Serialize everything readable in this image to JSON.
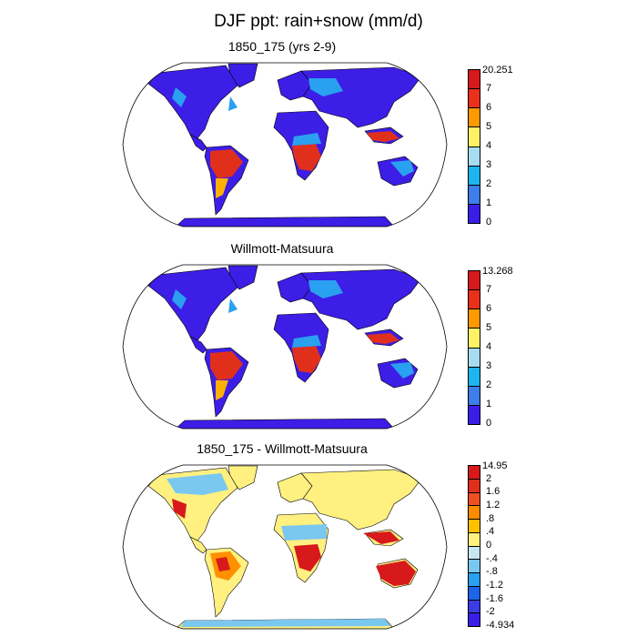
{
  "title": "DJF ppt: rain+snow (mm/d)",
  "panels": [
    {
      "title": "1850_175 (yrs 2-9)",
      "legend": {
        "labels": [
          "20.251",
          "7",
          "6",
          "5",
          "4",
          "3",
          "2",
          "1",
          "0"
        ],
        "colors": [
          "#d7191c",
          "#e8301a",
          "#ff9900",
          "#fff066",
          "#a8dcf0",
          "#1eb4f0",
          "#3d7ee8",
          "#3a1ee8"
        ]
      },
      "map_colors": {
        "ocean": "#ffffff",
        "land_base": "#3c1ee6",
        "wet": "#e0301c",
        "mid": "#ffb000",
        "moist": "#2aa0f0"
      }
    },
    {
      "title": "Willmott-Matsuura",
      "legend": {
        "labels": [
          "13.268",
          "7",
          "6",
          "5",
          "4",
          "3",
          "2",
          "1",
          "0"
        ],
        "colors": [
          "#d7191c",
          "#e8301a",
          "#ff9900",
          "#fff066",
          "#a8dcf0",
          "#1eb4f0",
          "#3d7ee8",
          "#3a1ee8"
        ]
      },
      "map_colors": {
        "ocean": "#ffffff",
        "land_base": "#3c1ee6",
        "wet": "#e0301c",
        "mid": "#ffb000",
        "moist": "#2aa0f0"
      }
    },
    {
      "title": "1850_175 - Willmott-Matsuura",
      "legend": {
        "labels": [
          "14.95",
          "2",
          "1.6",
          "1.2",
          ".8",
          ".4",
          "0",
          "-.4",
          "-.8",
          "-1.2",
          "-1.6",
          "-2",
          "-4.934"
        ],
        "colors": [
          "#d7191c",
          "#e0301c",
          "#f05020",
          "#ff8c00",
          "#ffc000",
          "#fff080",
          "#c8e6f0",
          "#7ac8f0",
          "#2aa0f0",
          "#1e64e8",
          "#3c3ce6",
          "#3a1ee8"
        ]
      },
      "map_colors": {
        "ocean": "#ffffff",
        "land_base": "#fff080",
        "wet": "#d7191c",
        "mid": "#ff9000",
        "moist": "#7ac8f0"
      }
    }
  ]
}
